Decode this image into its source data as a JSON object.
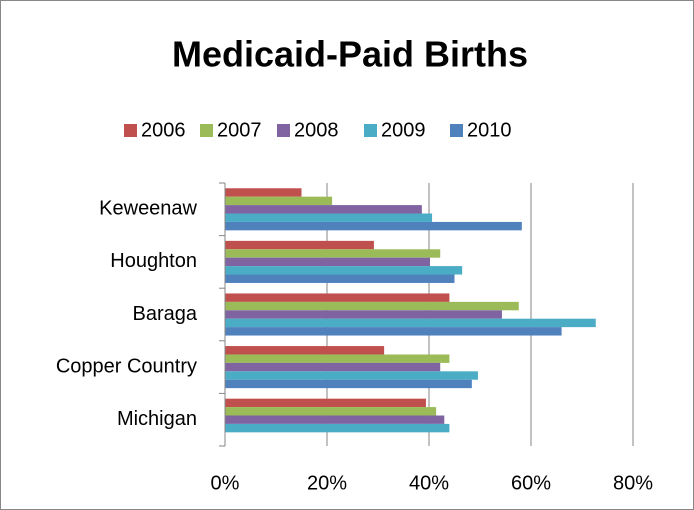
{
  "chart_data": {
    "type": "hbar",
    "title": "Medicaid-Paid Births",
    "categories": [
      "Keweenaw",
      "Houghton",
      "Baraga",
      "Copper Country",
      "Michigan"
    ],
    "series": [
      {
        "name": "2006",
        "color": "#c0504d",
        "values": [
          15,
          29.2,
          44,
          31.2,
          39.4
        ]
      },
      {
        "name": "2007",
        "color": "#9bbb59",
        "values": [
          21,
          42.2,
          57.6,
          44,
          41.4
        ]
      },
      {
        "name": "2008",
        "color": "#8064a2",
        "values": [
          38.6,
          40.2,
          54.3,
          42.2,
          43
        ]
      },
      {
        "name": "2009",
        "color": "#4bacc6",
        "values": [
          40.6,
          46.5,
          72.7,
          49.6,
          44
        ]
      },
      {
        "name": "2010",
        "color": "#4f81bd",
        "values": [
          58.2,
          45,
          66,
          48.4,
          null
        ]
      }
    ],
    "xlim": [
      0,
      80
    ],
    "xticks": [
      {
        "value": 0,
        "label": "0%"
      },
      {
        "value": 20,
        "label": "20%"
      },
      {
        "value": 40,
        "label": "40%"
      },
      {
        "value": 60,
        "label": "60%"
      },
      {
        "value": 80,
        "label": "80%"
      }
    ],
    "grid": true,
    "legend": "top"
  }
}
